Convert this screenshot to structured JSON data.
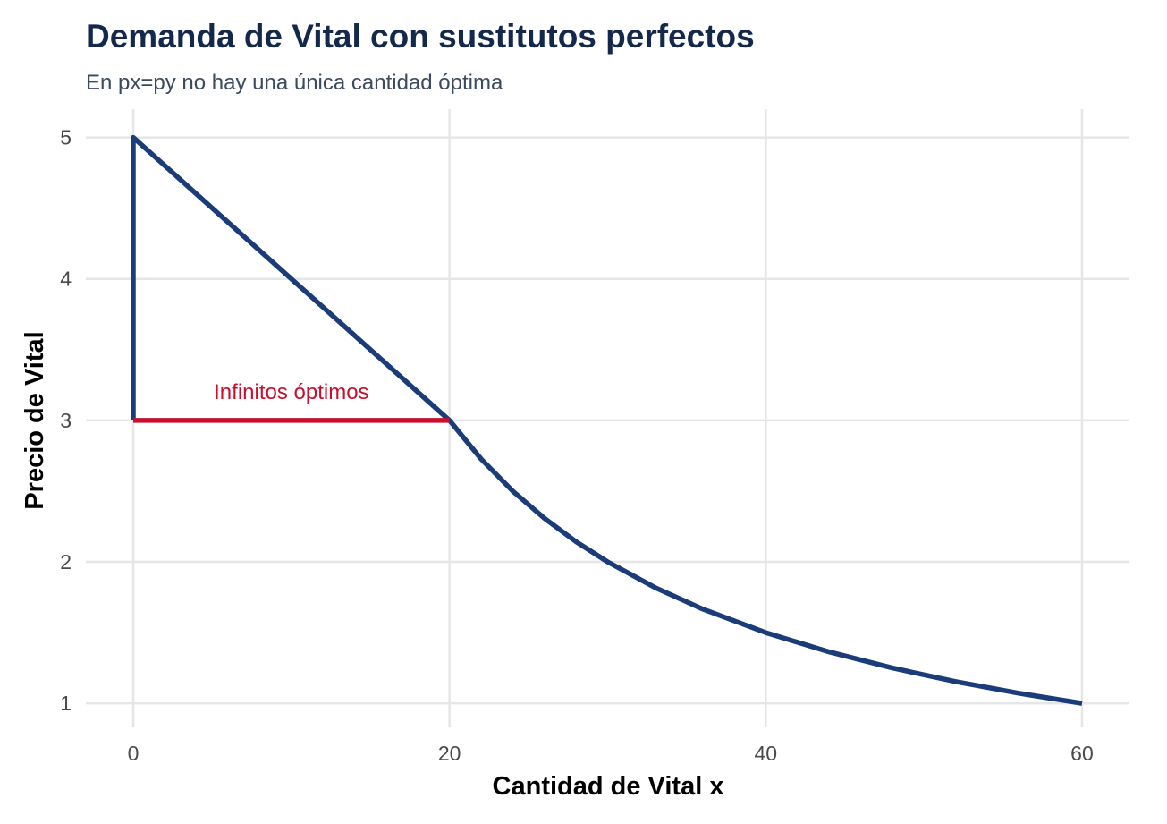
{
  "chart_data": {
    "type": "line",
    "title": "Demanda de Vital con sustitutos perfectos",
    "subtitle": "En px=py no hay una única cantidad óptima",
    "xlabel": "Cantidad de Vital x",
    "ylabel": "Precio de Vital",
    "xlim": [
      -3.0,
      63.0
    ],
    "ylim": [
      0.83,
      5.2
    ],
    "x_ticks": [
      0,
      20,
      40,
      60
    ],
    "y_ticks": [
      1,
      2,
      3,
      4,
      5
    ],
    "grid": true,
    "legend": "none",
    "series": [
      {
        "color": "#1a3c78",
        "points": [
          [
            0,
            3
          ],
          [
            0,
            5
          ],
          [
            20,
            3
          ],
          [
            22,
            2.7273
          ],
          [
            24,
            2.5
          ],
          [
            26,
            2.3077
          ],
          [
            28,
            2.1429
          ],
          [
            30,
            2.0
          ],
          [
            33,
            1.8182
          ],
          [
            36,
            1.6667
          ],
          [
            40,
            1.5
          ],
          [
            44,
            1.3636
          ],
          [
            48,
            1.25
          ],
          [
            52,
            1.1538
          ],
          [
            56,
            1.0714
          ],
          [
            60,
            1.0
          ]
        ]
      },
      {
        "color": "#c8102e",
        "points": [
          [
            0,
            3
          ],
          [
            20,
            3
          ]
        ]
      }
    ],
    "annotations": [
      {
        "text": "Infinitos óptimos",
        "x": 10,
        "y": 3.2,
        "color": "#c8102e"
      }
    ]
  }
}
